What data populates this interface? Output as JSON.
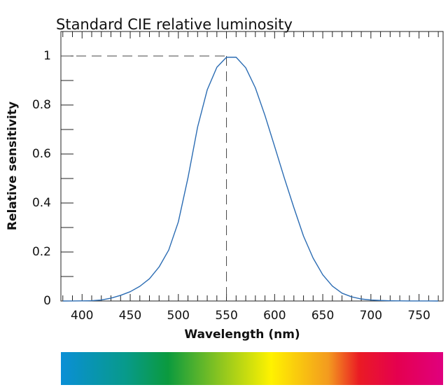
{
  "chart_data": {
    "type": "line",
    "title": "Standard CIE relative luminosity",
    "x_label": "Wavelength (nm)",
    "y_label": "Relative sensitivity",
    "x": [
      380,
      390,
      400,
      410,
      420,
      430,
      440,
      450,
      460,
      470,
      480,
      490,
      500,
      510,
      520,
      530,
      540,
      550,
      560,
      570,
      580,
      590,
      600,
      610,
      620,
      630,
      640,
      650,
      660,
      670,
      680,
      690,
      700,
      710,
      720,
      730,
      740,
      750,
      760,
      770
    ],
    "series": [
      {
        "color": "#2b6cb3",
        "values": [
          4e-05,
          0.00012,
          0.0004,
          0.0012,
          0.004,
          0.0116,
          0.023,
          0.038,
          0.06,
          0.091,
          0.139,
          0.208,
          0.323,
          0.503,
          0.71,
          0.862,
          0.954,
          0.995,
          0.995,
          0.952,
          0.87,
          0.757,
          0.631,
          0.503,
          0.381,
          0.265,
          0.175,
          0.107,
          0.061,
          0.032,
          0.017,
          0.0082,
          0.0041,
          0.0021,
          0.001,
          0.0005,
          0.00025,
          0.00012,
          6e-05,
          3e-05
        ]
      }
    ],
    "xlim": [
      378,
      775
    ],
    "ylim": [
      0,
      1.1
    ],
    "xticks": [
      400,
      450,
      500,
      550,
      600,
      650,
      700,
      750
    ],
    "yticks": [
      0,
      0.2,
      0.4,
      0.6,
      0.8,
      1
    ],
    "xminorticks": [
      380,
      390,
      410,
      420,
      430,
      440,
      460,
      470,
      480,
      490,
      510,
      520,
      530,
      540,
      560,
      570,
      580,
      590,
      610,
      620,
      630,
      640,
      660,
      670,
      680,
      690,
      710,
      720,
      730,
      740,
      760,
      770
    ],
    "yminorticks": [
      0.1,
      0.3,
      0.5,
      0.7,
      0.9
    ],
    "guide": {
      "x": 550,
      "y": 1
    }
  }
}
